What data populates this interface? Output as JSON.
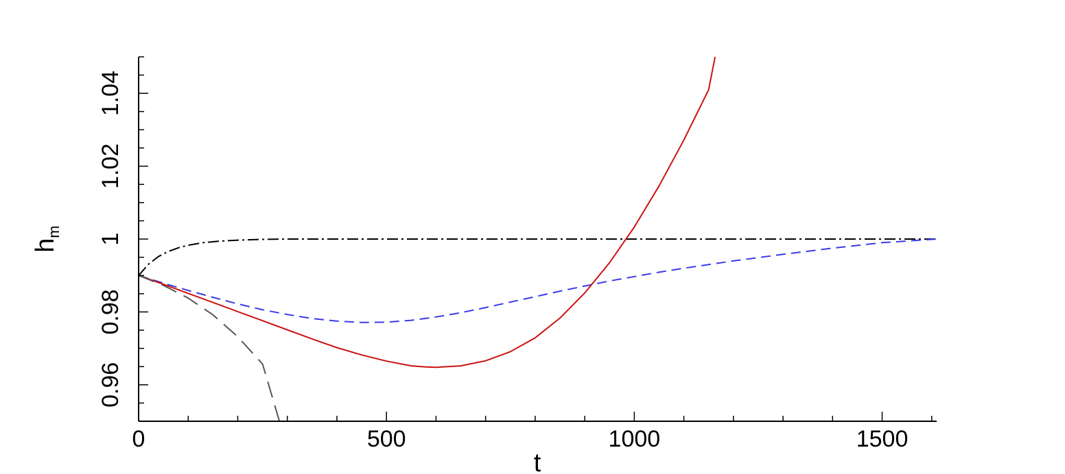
{
  "chart_data": {
    "type": "line",
    "title": "",
    "xlabel": "t",
    "ylabel": {
      "base": "h",
      "sub": "m"
    },
    "xlim": [
      0,
      1610
    ],
    "ylim": [
      0.95,
      1.05
    ],
    "x_ticks": [
      0,
      500,
      1000,
      1500
    ],
    "x_tick_labels": [
      "0",
      "500",
      "1000",
      "1500"
    ],
    "y_ticks": [
      0.96,
      0.98,
      1.0,
      1.02,
      1.04
    ],
    "y_tick_labels": [
      "0.96",
      "0.98",
      "1",
      "1.02",
      "1.04"
    ],
    "grid": false,
    "legend": "none",
    "series": [
      {
        "style": "dash-dot",
        "color": "#000000",
        "x": [
          0,
          20,
          40,
          60,
          80,
          100,
          130,
          160,
          200,
          250,
          300,
          400,
          600,
          800,
          1000,
          1200,
          1400,
          1610
        ],
        "y": [
          0.99,
          0.9931,
          0.9952,
          0.9966,
          0.9976,
          0.9983,
          0.999,
          0.9994,
          0.9997,
          0.9999,
          1.0,
          1.0,
          1.0,
          1.0,
          1.0,
          1.0,
          1.0,
          1.0
        ]
      },
      {
        "style": "short-dash",
        "color": "#3a3ae8",
        "x": [
          0,
          50,
          100,
          150,
          200,
          250,
          300,
          350,
          400,
          450,
          500,
          550,
          600,
          650,
          700,
          750,
          800,
          850,
          900,
          950,
          1000,
          1050,
          1100,
          1200,
          1300,
          1400,
          1500,
          1610
        ],
        "y": [
          0.99,
          0.9879,
          0.9859,
          0.984,
          0.9822,
          0.9806,
          0.9793,
          0.9782,
          0.9775,
          0.9771,
          0.9772,
          0.9777,
          0.9786,
          0.9798,
          0.9812,
          0.9827,
          0.9842,
          0.9857,
          0.9871,
          0.9885,
          0.9897,
          0.9909,
          0.992,
          0.994,
          0.9958,
          0.9975,
          0.999,
          1.0
        ]
      },
      {
        "style": "solid",
        "color": "#cc1111",
        "x": [
          0,
          50,
          100,
          150,
          200,
          250,
          300,
          350,
          400,
          450,
          500,
          550,
          580,
          600,
          650,
          700,
          750,
          800,
          850,
          900,
          950,
          1000,
          1050,
          1100,
          1150,
          1163
        ],
        "y": [
          0.99,
          0.9876,
          0.9851,
          0.9826,
          0.9801,
          0.9776,
          0.9751,
          0.9726,
          0.9702,
          0.9682,
          0.9665,
          0.9652,
          0.9649,
          0.9648,
          0.9652,
          0.9666,
          0.9691,
          0.9729,
          0.9783,
          0.9852,
          0.9935,
          1.0033,
          1.0146,
          1.0272,
          1.041,
          1.05
        ]
      },
      {
        "style": "long-dash",
        "color": "#555555",
        "x": [
          0,
          50,
          100,
          150,
          200,
          250,
          284
        ],
        "y": [
          0.99,
          0.9873,
          0.9838,
          0.9792,
          0.9732,
          0.9657,
          0.95
        ]
      }
    ]
  }
}
